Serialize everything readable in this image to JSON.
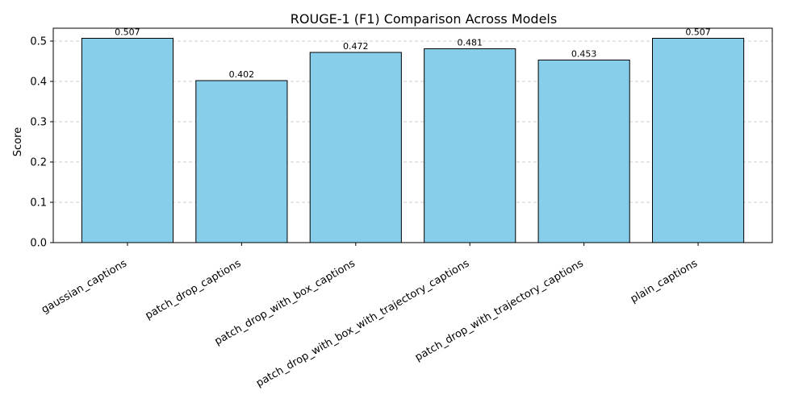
{
  "chart_data": {
    "type": "bar",
    "title": "ROUGE-1 (F1) Comparison Across Models",
    "xlabel": "",
    "ylabel": "Score",
    "categories": [
      "gaussian_captions",
      "patch_drop_captions",
      "patch_drop_with_box_captions",
      "patch_drop_with_box_with_trajectory_captions",
      "patch_drop_with_trajectory_captions",
      "plain_captions"
    ],
    "values": [
      0.507,
      0.402,
      0.472,
      0.481,
      0.453,
      0.507
    ],
    "data_labels": [
      "0.507",
      "0.402",
      "0.472",
      "0.481",
      "0.453",
      "0.507"
    ],
    "ylim": [
      0,
      0.532
    ],
    "yticks": [
      0.0,
      0.1,
      0.2,
      0.3,
      0.4,
      0.5
    ],
    "ytick_labels": [
      "0.0",
      "0.1",
      "0.2",
      "0.3",
      "0.4",
      "0.5"
    ],
    "grid": "y-dashed",
    "bar_color": "#87ceeb",
    "edge_color": "#000000"
  }
}
